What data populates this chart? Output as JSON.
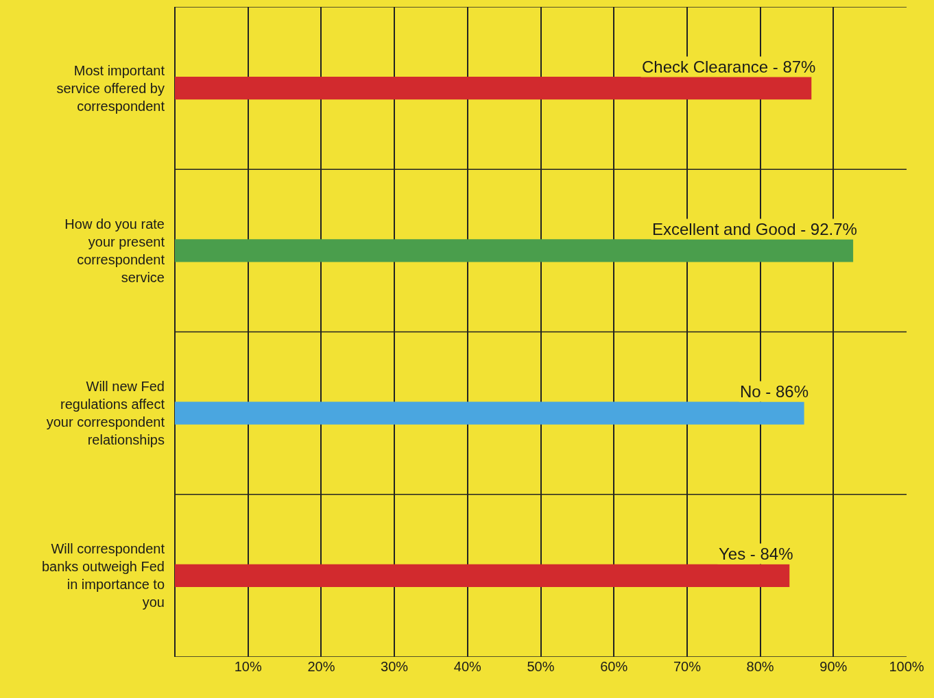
{
  "chart_data": {
    "type": "bar",
    "orientation": "horizontal",
    "categories": [
      "Most important service offered by correspondent",
      "How do you rate your present correspondent service",
      "Will new Fed regulations affect your correspondent relationships",
      "Will correspondent banks outweigh Fed in importance to you"
    ],
    "values": [
      87,
      92.7,
      86,
      84
    ],
    "colors": [
      "#d22a2e",
      "#4a9e4c",
      "#4aa6e0",
      "#d22a2e"
    ],
    "annotations": [
      {
        "text": "Check Clearance - 87%",
        "x": 87,
        "y": "Most important service offered by correspondent"
      },
      {
        "text": "Excellent and Good - 92.7%",
        "x": 92.7,
        "y": "How do you rate your present correspondent service"
      },
      {
        "text": "No - 86%",
        "x": 86,
        "y": "Will new Fed regulations affect your correspondent relationships"
      },
      {
        "text": "Yes - 84%",
        "x": 84,
        "y": "Will correspondent banks outweigh Fed in importance to you"
      }
    ],
    "xlim": [
      0,
      100
    ],
    "xticks": [
      {
        "value": 10,
        "label": "10%"
      },
      {
        "value": 20,
        "label": "20%"
      },
      {
        "value": 30,
        "label": "30%"
      },
      {
        "value": 40,
        "label": "40%"
      },
      {
        "value": 50,
        "label": "50%"
      },
      {
        "value": 60,
        "label": "60%"
      },
      {
        "value": 70,
        "label": "70%"
      },
      {
        "value": 80,
        "label": "80%"
      },
      {
        "value": 90,
        "label": "90%"
      },
      {
        "value": 100,
        "label": "100%"
      }
    ],
    "grid": true,
    "legend": false
  }
}
